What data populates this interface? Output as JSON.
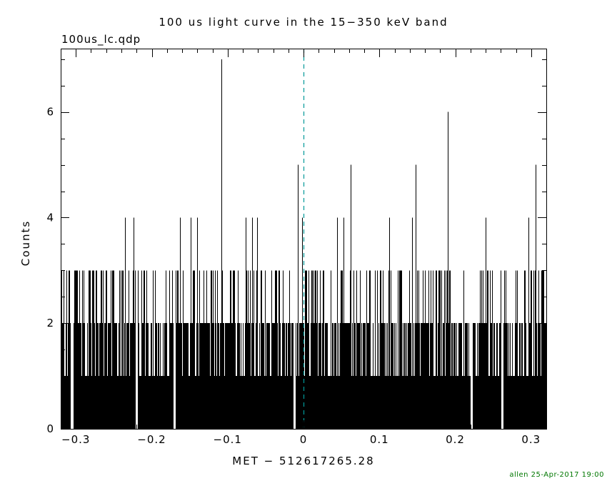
{
  "chart_data": {
    "type": "histogram",
    "title": "100 us light curve in the 15−350 keV band",
    "file_label": "100us_lc.qdp",
    "xlabel": "MET − 512617265.28",
    "ylabel": "Counts",
    "credit": "allen 25-Apr-2017 19:00",
    "xlim": [
      -0.32,
      0.32
    ],
    "ylim": [
      0,
      7.2
    ],
    "bin_width_s": 0.0001,
    "bar_color": "#000000",
    "credit_color": "#007700",
    "marker_line": {
      "x": 0,
      "color": "#009999",
      "style": "dashed"
    },
    "xticks": [
      {
        "v": -0.3,
        "label": "−0.3"
      },
      {
        "v": -0.2,
        "label": "−0.2"
      },
      {
        "v": -0.1,
        "label": "−0.1"
      },
      {
        "v": 0,
        "label": "0"
      },
      {
        "v": 0.1,
        "label": "0.1"
      },
      {
        "v": 0.2,
        "label": "0.2"
      },
      {
        "v": 0.3,
        "label": "0.3"
      }
    ],
    "x_minor_step": 0.02,
    "yticks": [
      {
        "v": 0,
        "label": "0"
      },
      {
        "v": 2,
        "label": "2"
      },
      {
        "v": 4,
        "label": "4"
      },
      {
        "v": 6,
        "label": "6"
      }
    ],
    "y_minor_step": 0.5,
    "spikes": [
      {
        "x": -0.108,
        "y": 7
      },
      {
        "x": 0.19,
        "y": 6
      },
      {
        "x": -0.008,
        "y": 5
      },
      {
        "x": 0.062,
        "y": 5
      },
      {
        "x": 0.148,
        "y": 5
      },
      {
        "x": 0.306,
        "y": 5
      },
      {
        "x": -0.235,
        "y": 4
      },
      {
        "x": -0.224,
        "y": 4
      },
      {
        "x": -0.163,
        "y": 4
      },
      {
        "x": -0.149,
        "y": 4
      },
      {
        "x": -0.14,
        "y": 4
      },
      {
        "x": -0.076,
        "y": 4
      },
      {
        "x": -0.068,
        "y": 4
      },
      {
        "x": -0.061,
        "y": 4
      },
      {
        "x": -0.002,
        "y": 4
      },
      {
        "x": 0.044,
        "y": 4
      },
      {
        "x": 0.053,
        "y": 4
      },
      {
        "x": 0.113,
        "y": 4
      },
      {
        "x": 0.143,
        "y": 4
      },
      {
        "x": 0.24,
        "y": 4
      },
      {
        "x": 0.296,
        "y": 4
      }
    ],
    "gaps": [
      -0.305,
      -0.22,
      -0.17,
      -0.012,
      0.222,
      0.262
    ],
    "noise": {
      "seed": 20170425,
      "prob_counts": {
        "1": 0.28,
        "2": 0.5,
        "3": 0.22
      },
      "gap_halfwidth": 0.0015,
      "description": "Poisson-like background: nearly every 100 us bin contains 1–3 counts, forming a solid black band up to 2 counts with frequent 3-count lines; isolated spikes listed in 'spikes'."
    }
  }
}
